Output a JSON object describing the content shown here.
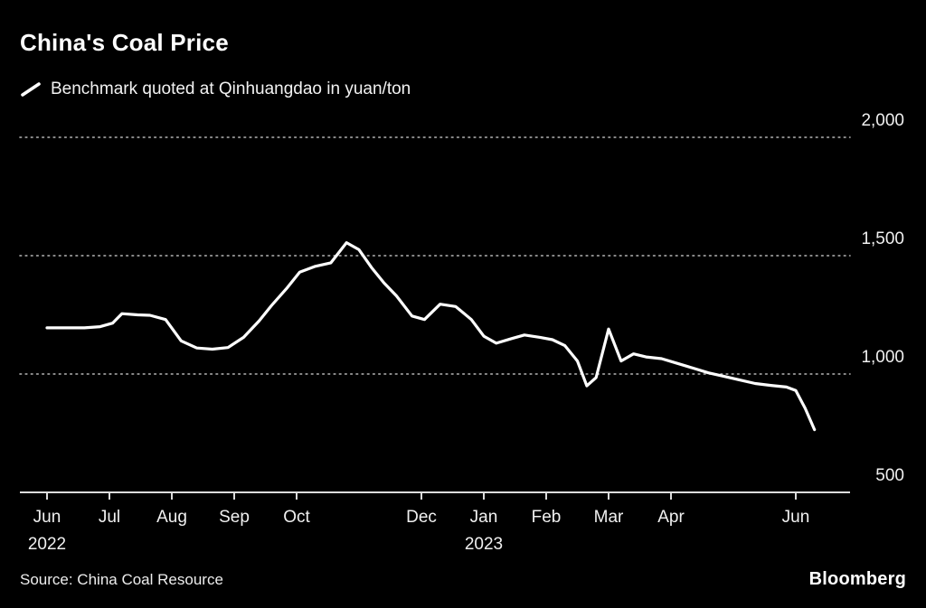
{
  "header": {
    "title": "China's Coal Price",
    "legend": "Benchmark quoted at Qinhuangdao in yuan/ton"
  },
  "footer": {
    "source": "Source: China Coal Resource",
    "brand": "Bloomberg"
  },
  "chart_data": {
    "type": "line",
    "title": "China's Coal Price",
    "series_name": "Benchmark quoted at Qinhuangdao in yuan/ton",
    "unit": "yuan/ton",
    "x_unit": "months since Jun 2022",
    "x": [
      0.0,
      0.3,
      0.6,
      0.85,
      1.05,
      1.2,
      1.45,
      1.65,
      1.9,
      2.15,
      2.4,
      2.65,
      2.9,
      3.15,
      3.4,
      3.6,
      3.85,
      4.05,
      4.3,
      4.55,
      4.8,
      5.0,
      5.2,
      5.4,
      5.6,
      5.85,
      6.05,
      6.3,
      6.55,
      6.8,
      7.0,
      7.2,
      7.45,
      7.65,
      7.9,
      8.1,
      8.3,
      8.5,
      8.65,
      8.8,
      9.0,
      9.2,
      9.4,
      9.6,
      9.85,
      10.1,
      10.35,
      10.6,
      10.85,
      11.1,
      11.35,
      11.6,
      11.85,
      12.0,
      12.15,
      12.3
    ],
    "values": [
      1195,
      1195,
      1195,
      1200,
      1215,
      1255,
      1250,
      1248,
      1230,
      1140,
      1110,
      1105,
      1112,
      1155,
      1225,
      1290,
      1365,
      1430,
      1455,
      1470,
      1555,
      1525,
      1450,
      1385,
      1330,
      1245,
      1230,
      1295,
      1285,
      1230,
      1160,
      1130,
      1150,
      1165,
      1155,
      1145,
      1120,
      1055,
      950,
      985,
      1190,
      1055,
      1085,
      1072,
      1065,
      1045,
      1025,
      1005,
      990,
      975,
      960,
      952,
      945,
      930,
      855,
      765
    ],
    "ylim": [
      500,
      2000
    ],
    "yticks": [
      {
        "v": 500,
        "label": "500"
      },
      {
        "v": 1000,
        "label": "1,000"
      },
      {
        "v": 1500,
        "label": "1,500"
      },
      {
        "v": 2000,
        "label": "2,000"
      }
    ],
    "xticks": [
      {
        "m": 0,
        "label": "Jun",
        "year": "2022"
      },
      {
        "m": 1,
        "label": "Jul"
      },
      {
        "m": 2,
        "label": "Aug"
      },
      {
        "m": 3,
        "label": "Sep"
      },
      {
        "m": 4,
        "label": "Oct"
      },
      {
        "m": 6,
        "label": "Dec"
      },
      {
        "m": 7,
        "label": "Jan",
        "year": "2023"
      },
      {
        "m": 8,
        "label": "Feb"
      },
      {
        "m": 9,
        "label": "Mar"
      },
      {
        "m": 10,
        "label": "Apr"
      },
      {
        "m": 12,
        "label": "Jun"
      }
    ],
    "grid": "horizontal dotted",
    "legend_position": "top-left",
    "line_color": "#ffffff",
    "grid_color": "#9c9c9c",
    "axis_color": "#dcdcdc",
    "text_color": "#f0f0f0",
    "background": "#000000"
  }
}
